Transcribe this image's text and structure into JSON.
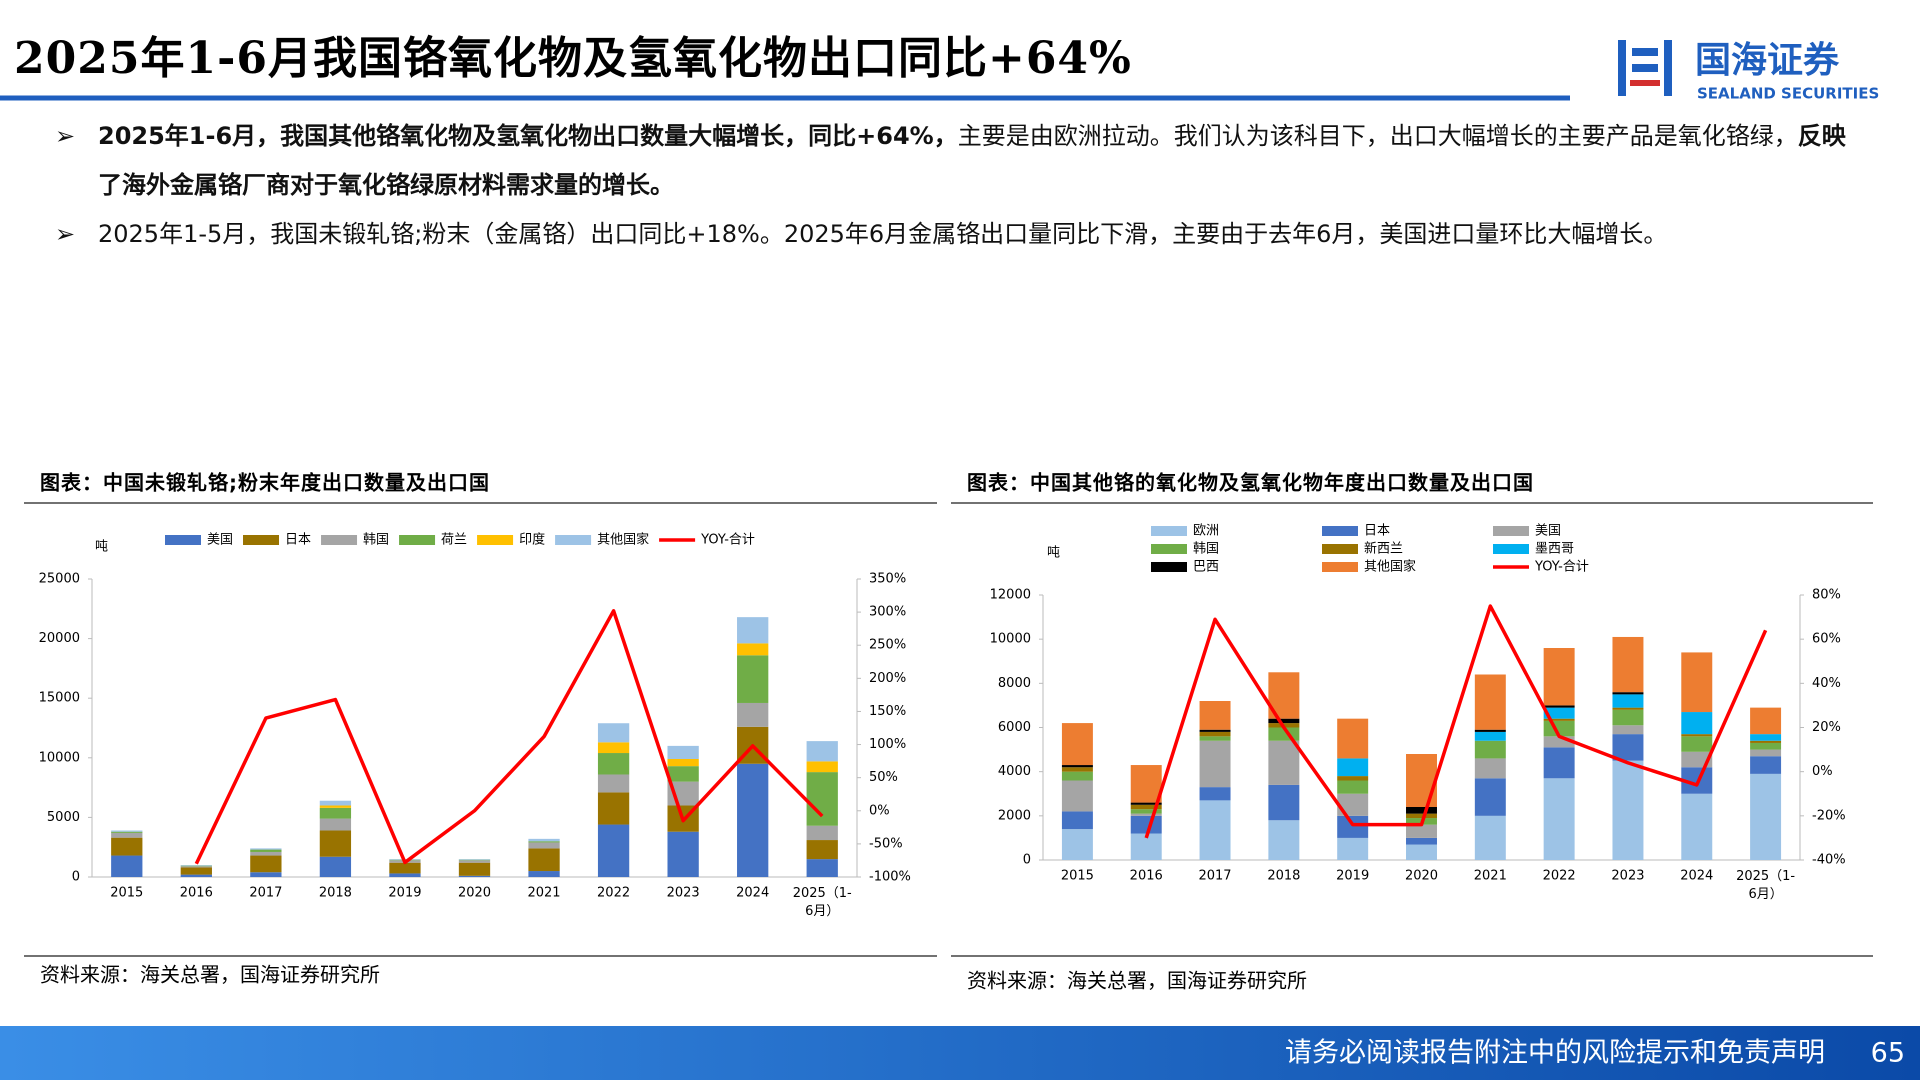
{
  "header": {
    "title": "2025年1-6月我国铬氧化物及氢氧化物出口同比+64%",
    "logo_cn": "国海证券",
    "logo_en": "SEALAND SECURITIES"
  },
  "bullets": [
    [
      {
        "text": "2025年1-6月，我国其他铬氧化物及氢氧化物出口数量大幅增长，同比+64%，",
        "bold": true
      },
      {
        "text": "主要是由欧洲拉动。我们认为该科目下，出口大幅增长的主要产品是氧化铬绿，",
        "bold": false
      },
      {
        "text": "反映了海外金属铬厂商对于氧化铬绿原材料需求量的增长。",
        "bold": true
      }
    ],
    [
      {
        "text": "2025年1-5月，我国未锻轧铬;粉末（金属铬）出口同比+18%。2025年6月金属铬出口量同比下滑，主要由于去年6月，美国进口量环比大幅增长。",
        "bold": false
      }
    ]
  ],
  "chart_data": [
    {
      "type": "bar",
      "stacked": true,
      "title": "图表：中国未锻轧铬;粉末年度出口数量及出口国",
      "source": "资料来源：海关总署，国海证券研究所",
      "y_unit": "吨",
      "categories": [
        "2015",
        "2016",
        "2017",
        "2018",
        "2019",
        "2020",
        "2021",
        "2022",
        "2023",
        "2024",
        "2025（1-6月）"
      ],
      "series": [
        {
          "name": "美国",
          "color": "#4472c4",
          "values": [
            1800,
            200,
            400,
            1700,
            300,
            100,
            500,
            4400,
            3800,
            9500,
            1500
          ]
        },
        {
          "name": "日本",
          "color": "#997300",
          "values": [
            1500,
            600,
            1400,
            2200,
            900,
            1100,
            1900,
            2700,
            2200,
            3100,
            1600
          ]
        },
        {
          "name": "韩国",
          "color": "#a5a5a5",
          "values": [
            400,
            100,
            300,
            1000,
            200,
            200,
            500,
            1500,
            2000,
            2000,
            1200
          ]
        },
        {
          "name": "荷兰",
          "color": "#70ad47",
          "values": [
            100,
            50,
            200,
            900,
            50,
            50,
            100,
            1800,
            1300,
            4000,
            4500
          ]
        },
        {
          "name": "印度",
          "color": "#ffc000",
          "values": [
            0,
            0,
            0,
            200,
            0,
            0,
            0,
            900,
            600,
            1000,
            900
          ]
        },
        {
          "name": "其他国家",
          "color": "#9dc3e6",
          "values": [
            100,
            50,
            100,
            400,
            50,
            50,
            200,
            1600,
            1100,
            2200,
            1700
          ]
        },
        {
          "name": "YOY-合计",
          "color": "#ff0000",
          "type": "line",
          "axis": "y2",
          "values": [
            null,
            -80,
            140,
            168,
            -78,
            0,
            112,
            302,
            -15,
            98,
            -8
          ]
        }
      ],
      "ylim": [
        0,
        25000
      ],
      "yticks": [
        0,
        5000,
        10000,
        15000,
        20000,
        25000
      ],
      "y2lim": [
        -100,
        350
      ],
      "y2ticks": [
        {
          "value": -100,
          "label": "-100%"
        },
        {
          "value": -50,
          "label": "-50%"
        },
        {
          "value": 0,
          "label": "0%"
        },
        {
          "value": 50,
          "label": "50%"
        },
        {
          "value": 100,
          "label": "100%"
        },
        {
          "value": 150,
          "label": "150%"
        },
        {
          "value": 200,
          "label": "200%"
        },
        {
          "value": 250,
          "label": "250%"
        },
        {
          "value": 300,
          "label": "300%"
        },
        {
          "value": 350,
          "label": "350%"
        }
      ]
    },
    {
      "type": "bar",
      "stacked": true,
      "title": "图表：中国其他铬的氧化物及氢氧化物年度出口数量及出口国",
      "source": "资料来源：海关总署，国海证券研究所",
      "y_unit": "吨",
      "categories": [
        "2015",
        "2016",
        "2017",
        "2018",
        "2019",
        "2020",
        "2021",
        "2022",
        "2023",
        "2024",
        "2025（1-6月）"
      ],
      "series": [
        {
          "name": "欧洲",
          "color": "#9dc3e6",
          "values": [
            1400,
            1200,
            2700,
            1800,
            1000,
            700,
            2000,
            3700,
            4500,
            3000,
            3900
          ]
        },
        {
          "name": "日本",
          "color": "#4472c4",
          "values": [
            800,
            800,
            600,
            1600,
            1000,
            300,
            1700,
            1400,
            1200,
            1200,
            800
          ]
        },
        {
          "name": "美国",
          "color": "#a5a5a5",
          "values": [
            1400,
            100,
            2100,
            2000,
            1000,
            600,
            900,
            500,
            400,
            700,
            300
          ]
        },
        {
          "name": "韩国",
          "color": "#70ad47",
          "values": [
            400,
            200,
            200,
            600,
            600,
            300,
            800,
            700,
            700,
            700,
            300
          ]
        },
        {
          "name": "新西兰",
          "color": "#997300",
          "values": [
            200,
            200,
            200,
            200,
            200,
            200,
            0,
            100,
            100,
            100,
            100
          ]
        },
        {
          "name": "墨西哥",
          "color": "#00b0f0",
          "values": [
            0,
            0,
            0,
            0,
            800,
            0,
            400,
            500,
            600,
            1000,
            300
          ]
        },
        {
          "name": "巴西",
          "color": "#000000",
          "values": [
            100,
            100,
            100,
            200,
            0,
            300,
            100,
            100,
            100,
            0,
            0
          ]
        },
        {
          "name": "其他国家",
          "color": "#ed7d31",
          "values": [
            1900,
            1700,
            1300,
            2100,
            1800,
            2400,
            2500,
            2600,
            2500,
            2700,
            1200
          ]
        },
        {
          "name": "YOY-合计",
          "color": "#ff0000",
          "type": "line",
          "axis": "y2",
          "values": [
            null,
            -30,
            69,
            20,
            -24,
            -24,
            75,
            16,
            4,
            -6,
            64
          ]
        }
      ],
      "ylim": [
        0,
        12000
      ],
      "yticks": [
        0,
        2000,
        4000,
        6000,
        8000,
        10000,
        12000
      ],
      "y2lim": [
        -40,
        80
      ],
      "y2ticks": [
        {
          "value": -40,
          "label": "-40%"
        },
        {
          "value": -20,
          "label": "-20%"
        },
        {
          "value": 0,
          "label": "0%"
        },
        {
          "value": 20,
          "label": "20%"
        },
        {
          "value": 40,
          "label": "40%"
        },
        {
          "value": 60,
          "label": "60%"
        },
        {
          "value": 80,
          "label": "80%"
        }
      ]
    }
  ],
  "footer": {
    "disclaimer": "请务必阅读报告附注中的风险提示和免责声明",
    "page": 65
  }
}
